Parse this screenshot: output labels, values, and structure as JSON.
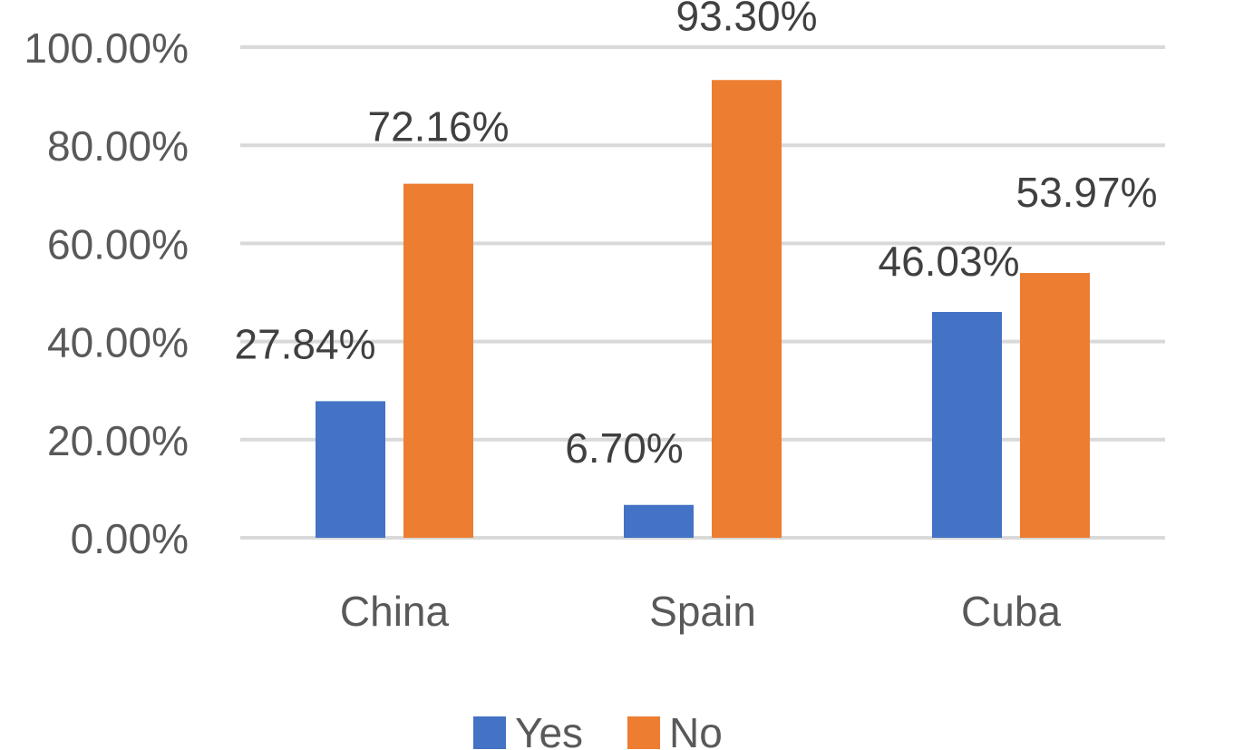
{
  "chart_data": {
    "type": "bar",
    "categories": [
      "China",
      "Spain",
      "Cuba"
    ],
    "series": [
      {
        "name": "Yes",
        "color": "#4472C4",
        "values": [
          27.84,
          6.7,
          46.03
        ],
        "labels": [
          "27.84%",
          "6.70%",
          "46.03%"
        ]
      },
      {
        "name": "No",
        "color": "#ED7D31",
        "values": [
          72.16,
          93.3,
          53.97
        ],
        "labels": [
          "72.16%",
          "93.30%",
          "53.97%"
        ]
      }
    ],
    "ylim": [
      0,
      100
    ],
    "yticks": [
      0,
      20,
      40,
      60,
      80,
      100
    ],
    "ytick_labels": [
      "0.00%",
      "20.00%",
      "40.00%",
      "60.00%",
      "80.00%",
      "100.00%"
    ],
    "grid": true,
    "legend": "bottom",
    "title": "",
    "xlabel": "",
    "ylabel": ""
  }
}
